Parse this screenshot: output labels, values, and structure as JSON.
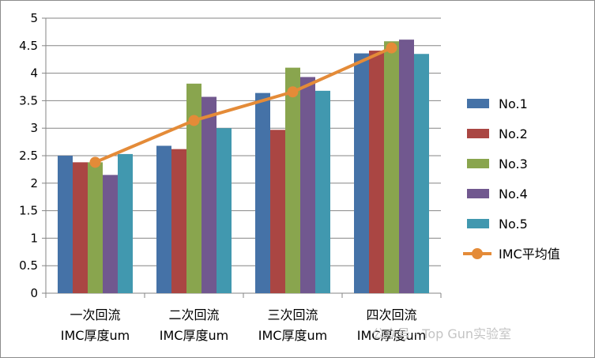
{
  "chart_data": {
    "type": "bar",
    "title": "",
    "xlabel": "",
    "ylabel": "",
    "ylim": [
      0,
      5
    ],
    "yticks": [
      "0",
      "0.5",
      "1",
      "1.5",
      "2",
      "2.5",
      "3",
      "3.5",
      "4",
      "4.5",
      "5"
    ],
    "grid": "horizontal",
    "legend_position": "right",
    "categories": [
      [
        "一次回流",
        "IMC厚度um"
      ],
      [
        "二次回流",
        "IMC厚度um"
      ],
      [
        "三次回流",
        "IMC厚度um"
      ],
      [
        "四次回流",
        "IMC厚度um"
      ]
    ],
    "series": [
      {
        "name": "No.1",
        "kind": "bar",
        "color": "#4572a7",
        "values": [
          2.5,
          2.68,
          3.64,
          4.36
        ]
      },
      {
        "name": "No.2",
        "kind": "bar",
        "color": "#aa4643",
        "values": [
          2.38,
          2.62,
          2.97,
          4.41
        ]
      },
      {
        "name": "No.3",
        "kind": "bar",
        "color": "#89a54e",
        "values": [
          2.38,
          3.81,
          4.1,
          4.58
        ]
      },
      {
        "name": "No.4",
        "kind": "bar",
        "color": "#71588f",
        "values": [
          2.15,
          3.57,
          3.93,
          4.61
        ]
      },
      {
        "name": "No.5",
        "kind": "bar",
        "color": "#4198af",
        "values": [
          2.53,
          3.0,
          3.68,
          4.35
        ]
      },
      {
        "name": "IMC平均值",
        "kind": "line",
        "color": "#e48b38",
        "marker": "circle",
        "values": [
          2.38,
          3.14,
          3.66,
          4.46
        ]
      }
    ]
  },
  "watermark": "公众号 · Top Gun实验室"
}
